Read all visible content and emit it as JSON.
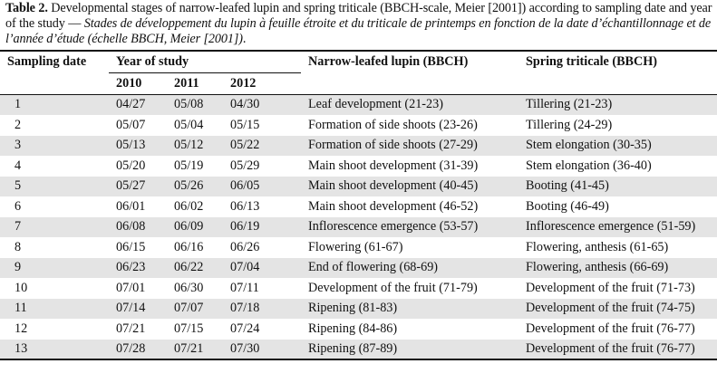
{
  "caption": {
    "label": "Table 2.",
    "english": " Developmental stages of narrow-leafed lupin and spring triticale (BBCH-scale, Meier [2001]) according to sampling date and year of the study — ",
    "french": "Stades de développement du lupin à feuille étroite et du triticale de printemps en fonction de la date d’échantillonnage et de l’année d’étude (échelle BBCH, Meier [2001])",
    "end": "."
  },
  "header": {
    "sampling_date": "Sampling date",
    "year_of_study": "Year of study",
    "years": [
      "2010",
      "2011",
      "2012"
    ],
    "lupin": "Narrow-leafed lupin (BBCH)",
    "triticale": "Spring triticale (BBCH)"
  },
  "rows": [
    {
      "n": "1",
      "y2010": "04/27",
      "y2011": "05/08",
      "y2012": "04/30",
      "lupin": "Leaf development (21-23)",
      "triticale": "Tillering (21-23)"
    },
    {
      "n": "2",
      "y2010": "05/07",
      "y2011": "05/04",
      "y2012": "05/15",
      "lupin": "Formation of side shoots (23-26)",
      "triticale": "Tillering (24-29)"
    },
    {
      "n": "3",
      "y2010": "05/13",
      "y2011": "05/12",
      "y2012": "05/22",
      "lupin": "Formation of side shoots (27-29)",
      "triticale": "Stem elongation (30-35)"
    },
    {
      "n": "4",
      "y2010": "05/20",
      "y2011": "05/19",
      "y2012": "05/29",
      "lupin": "Main shoot development (31-39)",
      "triticale": "Stem elongation (36-40)"
    },
    {
      "n": "5",
      "y2010": "05/27",
      "y2011": "05/26",
      "y2012": "06/05",
      "lupin": "Main shoot development (40-45)",
      "triticale": "Booting (41-45)"
    },
    {
      "n": "6",
      "y2010": "06/01",
      "y2011": "06/02",
      "y2012": "06/13",
      "lupin": "Main shoot development (46-52)",
      "triticale": "Booting (46-49)"
    },
    {
      "n": "7",
      "y2010": "06/08",
      "y2011": "06/09",
      "y2012": "06/19",
      "lupin": "Inflorescence emergence (53-57)",
      "triticale": "Inflorescence emergence (51-59)"
    },
    {
      "n": "8",
      "y2010": "06/15",
      "y2011": "06/16",
      "y2012": "06/26",
      "lupin": "Flowering (61-67)",
      "triticale": "Flowering, anthesis (61-65)"
    },
    {
      "n": "9",
      "y2010": "06/23",
      "y2011": "06/22",
      "y2012": "07/04",
      "lupin": "End of flowering (68-69)",
      "triticale": "Flowering, anthesis (66-69)"
    },
    {
      "n": "10",
      "y2010": "07/01",
      "y2011": "06/30",
      "y2012": "07/11",
      "lupin": "Development of the fruit (71-79)",
      "triticale": "Development of the fruit (71-73)"
    },
    {
      "n": "11",
      "y2010": "07/14",
      "y2011": "07/07",
      "y2012": "07/18",
      "lupin": "Ripening (81-83)",
      "triticale": "Development of the fruit (74-75)"
    },
    {
      "n": "12",
      "y2010": "07/21",
      "y2011": "07/15",
      "y2012": "07/24",
      "lupin": "Ripening (84-86)",
      "triticale": "Development of the fruit (76-77)"
    },
    {
      "n": "13",
      "y2010": "07/28",
      "y2011": "07/21",
      "y2012": "07/30",
      "lupin": "Ripening (87-89)",
      "triticale": "Development of the fruit (76-77)"
    }
  ],
  "colors": {
    "row_shade": "#e4e4e4",
    "rule": "#111111"
  }
}
